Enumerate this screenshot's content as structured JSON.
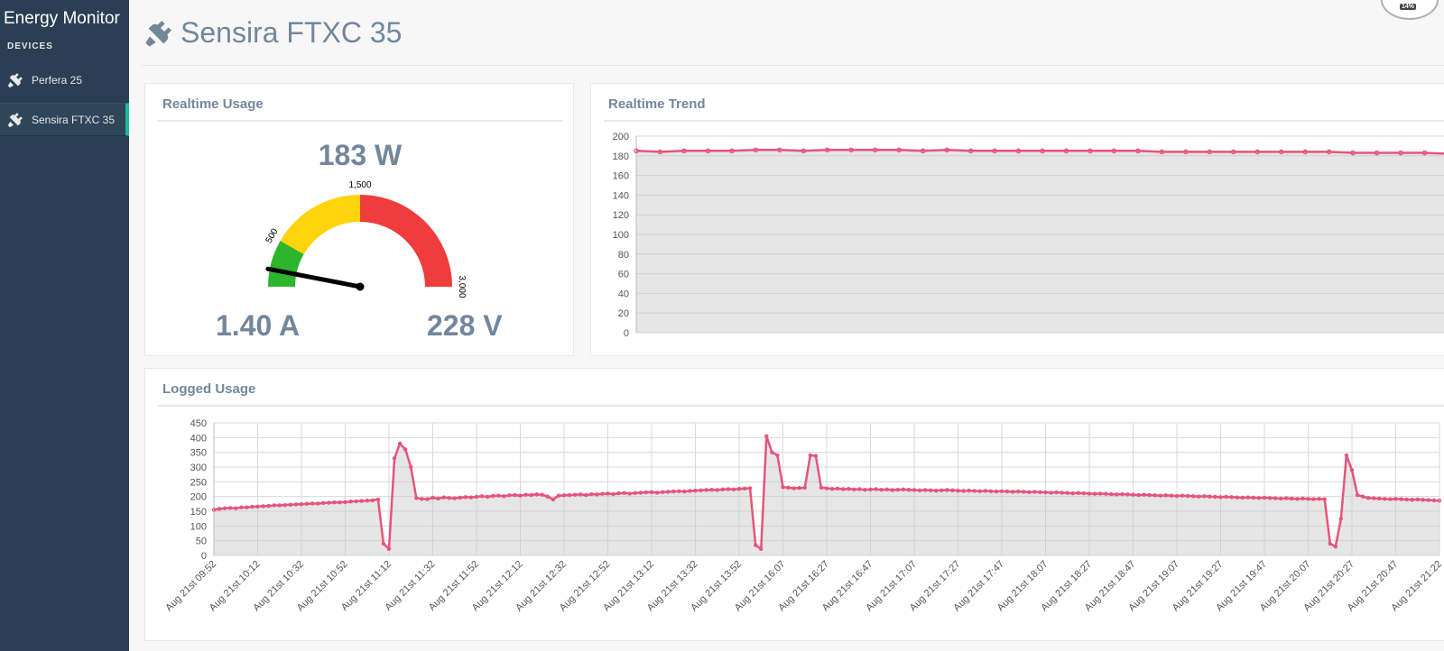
{
  "app": {
    "title": "Energy Monitor",
    "devices_label": "DEVICES"
  },
  "sidebar": {
    "items": [
      {
        "label": "Perfera 25",
        "icon": "plug-icon",
        "active": false
      },
      {
        "label": "Sensira FTXC 35",
        "icon": "plug-icon",
        "active": true
      }
    ]
  },
  "header": {
    "title": "Sensira FTXC 35",
    "icon": "plug-icon",
    "badge": "14%"
  },
  "colors": {
    "sidebar": "#2a3f54",
    "accent": "#1abb9c",
    "text": "#73879c",
    "series": "#e5557a",
    "gauge_green": "#2db52d",
    "gauge_yellow": "#ffd40a",
    "gauge_red": "#f03c3c"
  },
  "realtime_usage": {
    "title": "Realtime Usage",
    "power_display": "183 W",
    "current_display": "1.40 A",
    "voltage_display": "228 V",
    "gauge": {
      "min": 0,
      "max": 3000,
      "value": 183,
      "bands": [
        {
          "from": 0,
          "to": 500,
          "color": "#2db52d"
        },
        {
          "from": 500,
          "to": 1500,
          "color": "#ffd40a"
        },
        {
          "from": 1500,
          "to": 3000,
          "color": "#f03c3c"
        }
      ],
      "tick_labels": [
        "500",
        "1,500",
        "3,000"
      ]
    }
  },
  "chart_data": [
    {
      "type": "line",
      "title": "Realtime Trend",
      "ylim": [
        0,
        200
      ],
      "y_ticks": [
        "0",
        "20",
        "40",
        "60",
        "80",
        "100",
        "120",
        "140",
        "160",
        "180",
        "200"
      ],
      "grid": true,
      "series": [
        {
          "values": [
            185,
            184,
            185,
            185,
            185,
            186,
            186,
            185,
            186,
            186,
            186,
            186,
            185,
            186,
            185,
            185,
            185,
            185,
            185,
            185,
            185,
            185,
            184,
            184,
            184,
            184,
            184,
            184,
            184,
            184,
            183,
            183,
            183,
            183,
            182
          ]
        }
      ]
    },
    {
      "type": "area",
      "title": "Logged Usage",
      "ylim": [
        0,
        450
      ],
      "y_ticks": [
        "0",
        "50",
        "100",
        "150",
        "200",
        "250",
        "300",
        "350",
        "400",
        "450"
      ],
      "x_ticks": [
        "Aug 21st 09:52",
        "Aug 21st 10:12",
        "Aug 21st 10:32",
        "Aug 21st 10:52",
        "Aug 21st 11:12",
        "Aug 21st 11:32",
        "Aug 21st 11:52",
        "Aug 21st 12:12",
        "Aug 21st 12:32",
        "Aug 21st 12:52",
        "Aug 21st 13:12",
        "Aug 21st 13:32",
        "Aug 21st 13:52",
        "Aug 21st 16:07",
        "Aug 21st 16:27",
        "Aug 21st 16:47",
        "Aug 21st 17:07",
        "Aug 21st 17:27",
        "Aug 21st 17:47",
        "Aug 21st 18:07",
        "Aug 21st 18:27",
        "Aug 21st 18:47",
        "Aug 21st 19:07",
        "Aug 21st 19:27",
        "Aug 21st 19:47",
        "Aug 21st 20:07",
        "Aug 21st 20:27",
        "Aug 21st 20:47",
        "Aug 21st 21:22"
      ],
      "grid": true,
      "series": [
        {
          "values": [
            155,
            158,
            160,
            161,
            160,
            163,
            163,
            165,
            166,
            167,
            168,
            170,
            170,
            171,
            172,
            173,
            174,
            175,
            176,
            176,
            178,
            179,
            180,
            180,
            181,
            183,
            184,
            185,
            186,
            187,
            190,
            40,
            22,
            330,
            380,
            360,
            300,
            195,
            192,
            191,
            196,
            193,
            197,
            195,
            194,
            196,
            198,
            197,
            199,
            201,
            199,
            202,
            203,
            201,
            204,
            205,
            203,
            206,
            205,
            207,
            206,
            200,
            190,
            203,
            204,
            205,
            206,
            207,
            205,
            208,
            207,
            209,
            210,
            208,
            211,
            212,
            210,
            212,
            213,
            214,
            215,
            213,
            215,
            216,
            217,
            218,
            217,
            219,
            220,
            221,
            222,
            223,
            222,
            224,
            225,
            224,
            226,
            227,
            228,
            35,
            22,
            405,
            350,
            340,
            232,
            230,
            228,
            229,
            230,
            340,
            338,
            230,
            228,
            226,
            227,
            225,
            226,
            224,
            225,
            223,
            224,
            225,
            223,
            224,
            222,
            223,
            224,
            223,
            222,
            221,
            222,
            221,
            220,
            221,
            222,
            221,
            220,
            219,
            220,
            219,
            218,
            219,
            218,
            217,
            218,
            217,
            216,
            217,
            216,
            215,
            216,
            215,
            214,
            213,
            214,
            213,
            212,
            211,
            212,
            211,
            210,
            209,
            210,
            209,
            208,
            207,
            208,
            207,
            206,
            205,
            206,
            205,
            204,
            203,
            204,
            203,
            202,
            203,
            202,
            201,
            200,
            201,
            200,
            199,
            198,
            199,
            198,
            197,
            196,
            197,
            196,
            195,
            196,
            195,
            194,
            193,
            194,
            193,
            192,
            193,
            192,
            191,
            192,
            191,
            40,
            30,
            125,
            340,
            290,
            205,
            200,
            195,
            194,
            193,
            192,
            191,
            192,
            191,
            190,
            189,
            190,
            189,
            188,
            187,
            186
          ]
        }
      ]
    }
  ]
}
